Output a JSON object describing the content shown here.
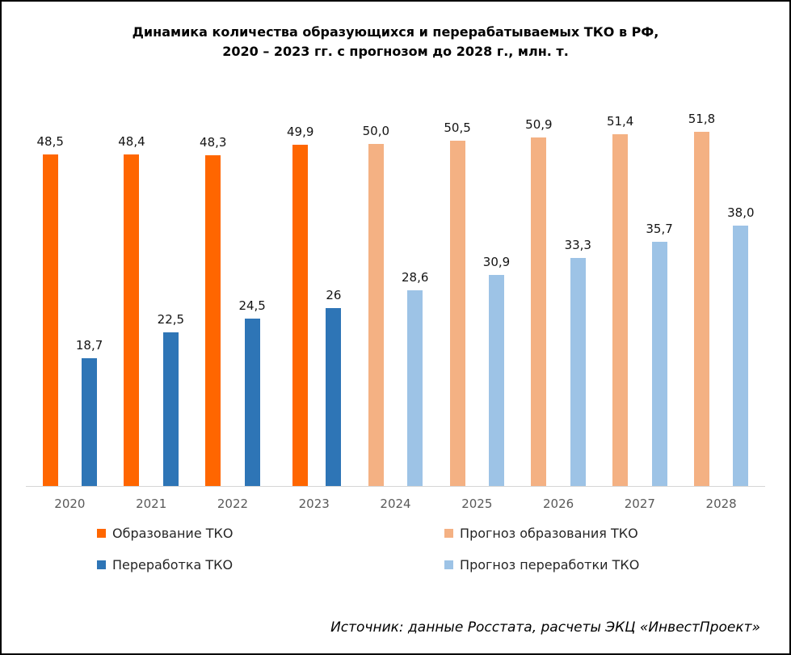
{
  "chart_data": {
    "type": "bar",
    "title": [
      "Динамика количества образующихся и перерабатываемых ТКО в РФ,",
      "2020 – 2023 гг. с прогнозом до 2028 г., млн. т."
    ],
    "categories": [
      "2020",
      "2021",
      "2022",
      "2023",
      "2024",
      "2025",
      "2026",
      "2027",
      "2028"
    ],
    "series": [
      {
        "name": "Образование ТКО",
        "forecast_name": "Прогноз образования ТКО",
        "color": "#FF6600",
        "forecast_color": "#F4B183",
        "values": [
          48.5,
          48.4,
          48.3,
          49.9,
          50.0,
          50.5,
          50.9,
          51.4,
          51.8
        ],
        "labels": [
          "48,5",
          "48,4",
          "48,3",
          "49,9",
          "50,0",
          "50,5",
          "50,9",
          "51,4",
          "51,8"
        ]
      },
      {
        "name": "Переработка ТКО",
        "forecast_name": "Прогноз переработки ТКО",
        "color": "#2E75B6",
        "forecast_color": "#9DC3E6",
        "values": [
          18.7,
          22.5,
          24.5,
          26,
          28.6,
          30.9,
          33.3,
          35.7,
          38.0
        ],
        "labels": [
          "18,7",
          "22,5",
          "24,5",
          "26",
          "28,6",
          "30,9",
          "33,3",
          "35,7",
          "38,0"
        ]
      }
    ],
    "forecast_from_index": 4,
    "ylim": [
      0,
      52
    ],
    "grid": false,
    "legend_position": "bottom",
    "legend": [
      {
        "label": "Образование ТКО",
        "color": "#FF6600"
      },
      {
        "label": "Прогноз образования ТКО",
        "color": "#F4B183"
      },
      {
        "label": "Переработка ТКО",
        "color": "#2E75B6"
      },
      {
        "label": "Прогноз переработки ТКО",
        "color": "#9DC3E6"
      }
    ],
    "source": "Источник: данные Росстата, расчеты ЭКЦ «ИнвестПроект»"
  }
}
